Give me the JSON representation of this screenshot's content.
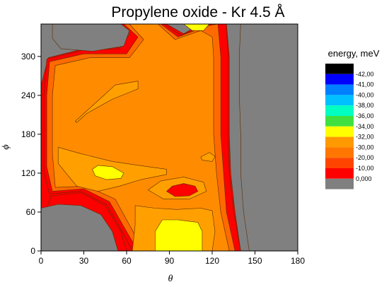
{
  "chart_data": {
    "type": "contour",
    "title": "Propylene oxide - Kr 4.5 Å",
    "xlabel": "θ",
    "ylabel": "ϕ",
    "xlim": [
      0,
      180
    ],
    "ylim": [
      0,
      350
    ],
    "x_ticks": [
      "0",
      "30",
      "60",
      "90",
      "120",
      "150",
      "180"
    ],
    "y_ticks": [
      "0",
      "60",
      "120",
      "180",
      "240",
      "300"
    ],
    "x_tick_values": [
      0,
      30,
      60,
      90,
      120,
      150,
      180
    ],
    "y_tick_values": [
      0,
      60,
      120,
      180,
      240,
      300
    ],
    "legend": {
      "title": "energy, meV",
      "levels": [
        {
          "label": "-42,00",
          "color": "#000000"
        },
        {
          "label": "-41,00",
          "color": "#0000ff"
        },
        {
          "label": "-40,00",
          "color": "#0080ff"
        },
        {
          "label": "-38,00",
          "color": "#00c0ff"
        },
        {
          "label": "-36,00",
          "color": "#00ffc0"
        },
        {
          "label": "-34,00",
          "color": "#40e040"
        },
        {
          "label": "-32,00",
          "color": "#ffff00"
        },
        {
          "label": "-30,00",
          "color": "#ff9900"
        },
        {
          "label": "-20,00",
          "color": "#ff7700"
        },
        {
          "label": "-10,00",
          "color": "#ff4400"
        },
        {
          "label": "0,000",
          "color": "#ff0000"
        },
        {
          "label": "",
          "color": "#808080"
        }
      ]
    },
    "regions": [
      {
        "name": "gray-background",
        "color": "#808080",
        "points": [
          [
            0,
            0
          ],
          [
            180,
            0
          ],
          [
            180,
            350
          ],
          [
            0,
            350
          ]
        ]
      },
      {
        "name": "red-band",
        "color": "#ff0000",
        "points": [
          [
            0,
            350
          ],
          [
            88,
            350
          ],
          [
            100,
            335
          ],
          [
            112,
            350
          ],
          [
            130,
            350
          ],
          [
            132,
            300
          ],
          [
            132,
            240
          ],
          [
            132,
            180
          ],
          [
            133,
            120
          ],
          [
            136,
            60
          ],
          [
            140,
            0
          ],
          [
            0,
            0
          ],
          [
            0,
            40
          ],
          [
            7,
            85
          ],
          [
            28,
            90
          ],
          [
            45,
            70
          ],
          [
            56,
            30
          ],
          [
            60,
            0
          ],
          [
            0,
            0
          ],
          [
            0,
            255
          ],
          [
            5,
            298
          ],
          [
            30,
            312
          ],
          [
            56,
            314
          ],
          [
            62,
            335
          ],
          [
            52,
            350
          ],
          [
            0,
            350
          ]
        ]
      },
      {
        "name": "red-edge-main",
        "color": "#ff0000",
        "points": [
          [
            4,
            350
          ],
          [
            86,
            350
          ],
          [
            98,
            333
          ],
          [
            116,
            350
          ],
          [
            130,
            350
          ],
          [
            131,
            300
          ],
          [
            131,
            240
          ],
          [
            131,
            180
          ],
          [
            132,
            120
          ],
          [
            135,
            60
          ],
          [
            140,
            0
          ],
          [
            64,
            0
          ],
          [
            57,
            30
          ],
          [
            46,
            72
          ],
          [
            28,
            92
          ],
          [
            6,
            88
          ],
          [
            2,
            120
          ],
          [
            2,
            240
          ],
          [
            4,
            296
          ],
          [
            30,
            310
          ],
          [
            55,
            312
          ],
          [
            62,
            335
          ],
          [
            52,
            350
          ]
        ]
      },
      {
        "name": "orange-dark",
        "color": "#ff6a00",
        "points": [
          [
            8,
            350
          ],
          [
            84,
            350
          ],
          [
            96,
            330
          ],
          [
            116,
            347
          ],
          [
            124,
            350
          ],
          [
            126,
            300
          ],
          [
            126,
            240
          ],
          [
            126,
            180
          ],
          [
            128,
            120
          ],
          [
            130,
            60
          ],
          [
            136,
            0
          ],
          [
            68,
            0
          ],
          [
            60,
            30
          ],
          [
            48,
            76
          ],
          [
            30,
            96
          ],
          [
            8,
            92
          ],
          [
            4,
            130
          ],
          [
            4,
            240
          ],
          [
            6,
            292
          ],
          [
            30,
            304
          ],
          [
            60,
            304
          ],
          [
            68,
            330
          ],
          [
            58,
            350
          ]
        ]
      },
      {
        "name": "orange-main",
        "color": "#ff8c00",
        "points": [
          [
            12,
            350
          ],
          [
            82,
            350
          ],
          [
            94,
            326
          ],
          [
            112,
            340
          ],
          [
            120,
            330
          ],
          [
            121,
            300
          ],
          [
            121,
            240
          ],
          [
            121,
            180
          ],
          [
            123,
            120
          ],
          [
            126,
            60
          ],
          [
            132,
            0
          ],
          [
            72,
            0
          ],
          [
            64,
            32
          ],
          [
            52,
            80
          ],
          [
            32,
            100
          ],
          [
            10,
            98
          ],
          [
            8,
            150
          ],
          [
            8,
            240
          ],
          [
            10,
            286
          ],
          [
            34,
            298
          ],
          [
            62,
            298
          ],
          [
            72,
            326
          ],
          [
            62,
            350
          ]
        ]
      },
      {
        "name": "orange-light-left",
        "color": "#ffa000",
        "points": [
          [
            24,
            200
          ],
          [
            36,
            224
          ],
          [
            52,
            256
          ],
          [
            68,
            262
          ],
          [
            68,
            250
          ],
          [
            50,
            234
          ],
          [
            32,
            212
          ],
          [
            25,
            198
          ]
        ]
      },
      {
        "name": "orange-light-mid",
        "color": "#ffa000",
        "points": [
          [
            12,
            160
          ],
          [
            28,
            150
          ],
          [
            50,
            138
          ],
          [
            75,
            130
          ],
          [
            88,
            126
          ],
          [
            88,
            118
          ],
          [
            70,
            110
          ],
          [
            55,
            100
          ],
          [
            40,
            92
          ],
          [
            25,
            100
          ],
          [
            12,
            135
          ]
        ]
      },
      {
        "name": "orange-light-bottom",
        "color": "#ffa000",
        "points": [
          [
            66,
            70
          ],
          [
            80,
            66
          ],
          [
            95,
            64
          ],
          [
            112,
            66
          ],
          [
            120,
            62
          ],
          [
            122,
            30
          ],
          [
            120,
            0
          ],
          [
            64,
            0
          ],
          [
            66,
            40
          ]
        ]
      },
      {
        "name": "orange-light-small",
        "color": "#ffa000",
        "points": [
          [
            112,
            145
          ],
          [
            118,
            152
          ],
          [
            122,
            146
          ],
          [
            120,
            138
          ],
          [
            113,
            140
          ]
        ]
      },
      {
        "name": "orange-light-ring",
        "color": "#ffa000",
        "points": [
          [
            75,
            94
          ],
          [
            84,
            108
          ],
          [
            100,
            114
          ],
          [
            114,
            106
          ],
          [
            116,
            92
          ],
          [
            104,
            80
          ],
          [
            86,
            80
          ]
        ]
      },
      {
        "name": "red-spot",
        "color": "#ff0000",
        "points": [
          [
            88,
            92
          ],
          [
            92,
            100
          ],
          [
            100,
            104
          ],
          [
            108,
            100
          ],
          [
            110,
            92
          ],
          [
            104,
            85
          ],
          [
            94,
            84
          ]
        ]
      },
      {
        "name": "yellow-top",
        "color": "#ffff00",
        "points": [
          [
            100,
            350
          ],
          [
            106,
            340
          ],
          [
            114,
            340
          ],
          [
            118,
            350
          ]
        ]
      },
      {
        "name": "yellow-left",
        "color": "#ffff00",
        "points": [
          [
            36,
            126
          ],
          [
            40,
            132
          ],
          [
            50,
            130
          ],
          [
            58,
            120
          ],
          [
            56,
            112
          ],
          [
            46,
            110
          ],
          [
            38,
            116
          ]
        ]
      },
      {
        "name": "yellow-bottom",
        "color": "#ffff00",
        "points": [
          [
            80,
            0
          ],
          [
            80,
            30
          ],
          [
            85,
            48
          ],
          [
            96,
            48
          ],
          [
            110,
            44
          ],
          [
            113,
            30
          ],
          [
            113,
            0
          ]
        ]
      },
      {
        "name": "gray-topleft",
        "color": "#808080",
        "points": [
          [
            8,
            350
          ],
          [
            8,
            328
          ],
          [
            14,
            312
          ],
          [
            36,
            308
          ],
          [
            58,
            316
          ],
          [
            62,
            340
          ],
          [
            56,
            350
          ]
        ]
      },
      {
        "name": "gray-bottomleft",
        "color": "#808080",
        "points": [
          [
            0,
            0
          ],
          [
            54,
            0
          ],
          [
            50,
            30
          ],
          [
            42,
            56
          ],
          [
            28,
            70
          ],
          [
            12,
            72
          ],
          [
            0,
            66
          ]
        ]
      },
      {
        "name": "gray-right",
        "color": "#808080",
        "points": [
          [
            140,
            350
          ],
          [
            180,
            350
          ],
          [
            180,
            0
          ],
          [
            146,
            0
          ],
          [
            142,
            60
          ],
          [
            140,
            120
          ],
          [
            140,
            180
          ],
          [
            139,
            240
          ],
          [
            139,
            300
          ]
        ]
      }
    ]
  }
}
